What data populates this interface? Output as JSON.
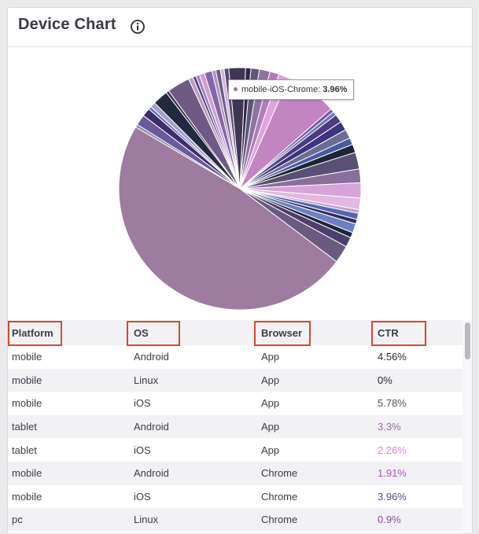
{
  "header": {
    "title": "Device Chart",
    "info_icon": "info-circle-icon"
  },
  "tooltip": {
    "label": "mobile-iOS-Chrome:",
    "value": "3.96%"
  },
  "table": {
    "columns": [
      "Platform",
      "OS",
      "Browser",
      "CTR"
    ],
    "rows": [
      {
        "platform": "mobile",
        "os": "Android",
        "browser": "App",
        "ctr": "4.56%",
        "ctr_color": "#2b2b33"
      },
      {
        "platform": "mobile",
        "os": "Linux",
        "browser": "App",
        "ctr": "0%",
        "ctr_color": "#2b2b33"
      },
      {
        "platform": "mobile",
        "os": "iOS",
        "browser": "App",
        "ctr": "5.78%",
        "ctr_color": "#55555f"
      },
      {
        "platform": "tablet",
        "os": "Android",
        "browser": "App",
        "ctr": "3.3%",
        "ctr_color": "#9b6aa6"
      },
      {
        "platform": "tablet",
        "os": "iOS",
        "browser": "App",
        "ctr": "2.26%",
        "ctr_color": "#d08fd6"
      },
      {
        "platform": "mobile",
        "os": "Android",
        "browser": "Chrome",
        "ctr": "1.91%",
        "ctr_color": "#a857b8"
      },
      {
        "platform": "mobile",
        "os": "iOS",
        "browser": "Chrome",
        "ctr": "3.96%",
        "ctr_color": "#5a4f86"
      },
      {
        "platform": "pc",
        "os": "Linux",
        "browser": "Chrome",
        "ctr": "0.9%",
        "ctr_color": "#8e4f9b"
      }
    ]
  },
  "chart_data": {
    "type": "pie",
    "title": "",
    "highlighted": "mobile-iOS-Chrome",
    "slices": [
      {
        "value": 0.4,
        "color": "#8f8aa3"
      },
      {
        "value": 1.4,
        "color": "#6a5a9c"
      },
      {
        "value": 1.1,
        "color": "#3f2d6b"
      },
      {
        "value": 0.4,
        "color": "#6574b0"
      },
      {
        "value": 0.7,
        "color": "#a6a0cc"
      },
      {
        "value": 2.0,
        "color": "#23293f"
      },
      {
        "value": 0.4,
        "color": "#3a3550"
      },
      {
        "value": 3.0,
        "color": "#6f5a86"
      },
      {
        "value": 0.6,
        "color": "#b89bc5"
      },
      {
        "value": 0.4,
        "color": "#4e3b73"
      },
      {
        "value": 0.5,
        "color": "#9a86c9"
      },
      {
        "value": 0.7,
        "color": "#cf9fd0"
      },
      {
        "value": 1.0,
        "color": "#8267a8"
      },
      {
        "value": 0.5,
        "color": "#b48cc2"
      },
      {
        "value": 0.6,
        "color": "#6a5c8a"
      },
      {
        "value": 0.5,
        "color": "#d7b2dc"
      },
      {
        "value": 0.6,
        "color": "#544a72"
      },
      {
        "value": 2.2,
        "color": "#403652"
      },
      {
        "value": 0.7,
        "color": "#2f2944"
      },
      {
        "value": 1.1,
        "color": "#62547a"
      },
      {
        "value": 1.4,
        "color": "#8d739d"
      },
      {
        "value": 1.2,
        "color": "#b07cba"
      },
      {
        "value": 1.4,
        "color": "#dca6dc"
      },
      {
        "value": 6.8,
        "color": "#c285c1"
      },
      {
        "value": 0.5,
        "color": "#7c5aa3"
      },
      {
        "value": 0.5,
        "color": "#6a77b8"
      },
      {
        "value": 1.1,
        "color": "#4e3a7f"
      },
      {
        "value": 1.2,
        "color": "#3e3580"
      },
      {
        "value": 1.2,
        "color": "#6c6c95"
      },
      {
        "value": 0.9,
        "color": "#4a5aa0"
      },
      {
        "value": 1.1,
        "color": "#1f2536"
      },
      {
        "value": 2.2,
        "color": "#5a4f74"
      },
      {
        "value": 1.8,
        "color": "#8a6f9d"
      },
      {
        "value": 2.0,
        "color": "#d7a4d9"
      },
      {
        "value": 1.5,
        "color": "#e2b7e2"
      },
      {
        "value": 0.5,
        "color": "#c2a0cf"
      },
      {
        "value": 0.8,
        "color": "#5566b0"
      },
      {
        "value": 0.6,
        "color": "#2e2d5a"
      },
      {
        "value": 1.2,
        "color": "#6f80c2"
      },
      {
        "value": 0.7,
        "color": "#20243a"
      },
      {
        "value": 1.3,
        "color": "#4d3f6b"
      },
      {
        "value": 2.3,
        "color": "#6b5a7f"
      },
      {
        "value": 47.5,
        "color": "#9d7c9f"
      }
    ]
  }
}
